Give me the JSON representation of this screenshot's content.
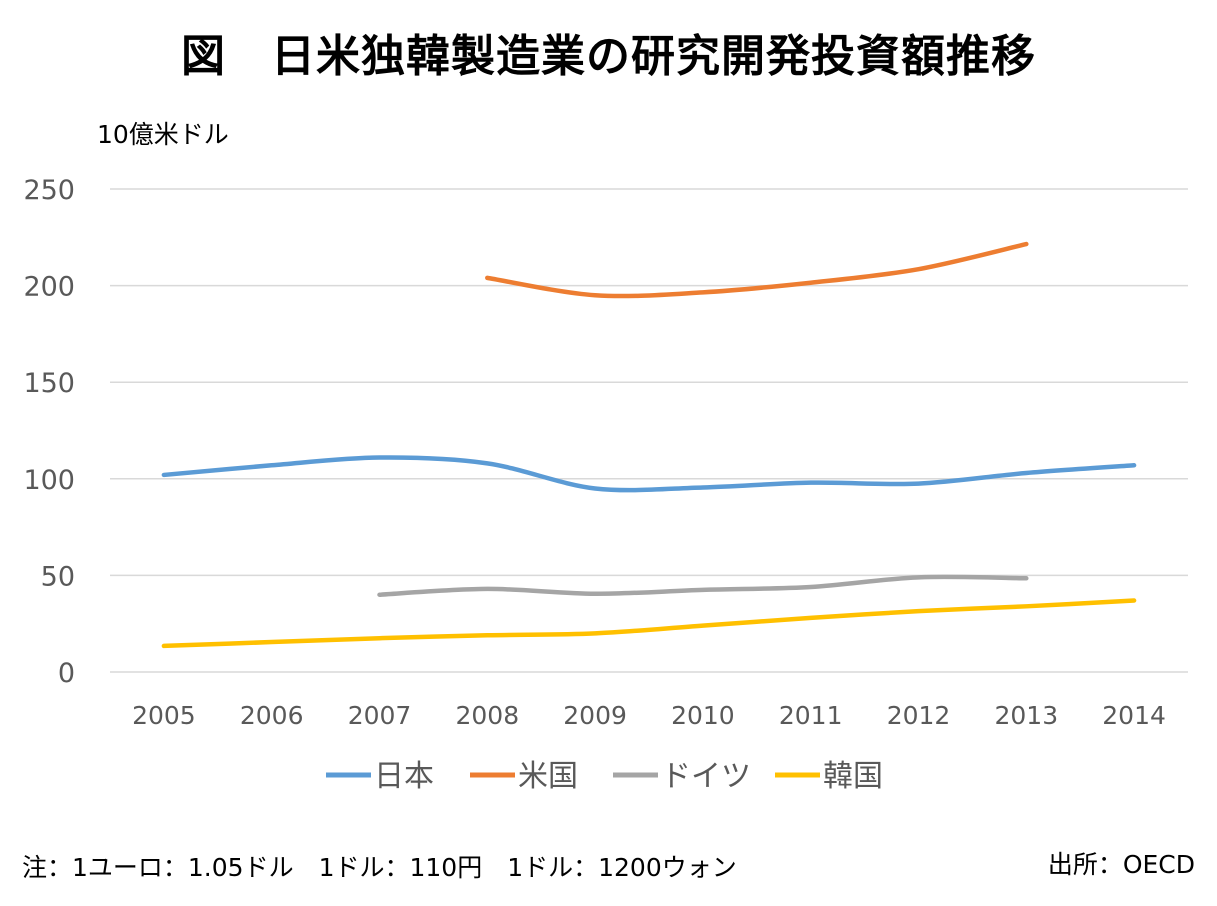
{
  "title": "図　日米独韓製造業の研究開発投資額推移",
  "note": "注：1ユーロ：1.05ドル　1ドル：110円　1ドル：1200ウォン",
  "source": "出所：OECD",
  "colors": {
    "日本": "#5B9BD5",
    "米国": "#ED7D31",
    "ドイツ": "#A5A5A5",
    "韓国": "#FFC000",
    "grid": "#D9D9D9",
    "tick": "#595959"
  },
  "chart_data": {
    "type": "line",
    "title": "図　日米独韓製造業の研究開発投資額推移",
    "ylabel": "10億米ドル",
    "xlabel": "",
    "ylim": [
      0,
      250
    ],
    "yticks": [
      0,
      50,
      100,
      150,
      200,
      250
    ],
    "grid": true,
    "legend": "bottom",
    "categories": [
      "2005",
      "2006",
      "2007",
      "2008",
      "2009",
      "2010",
      "2011",
      "2012",
      "2013",
      "2014"
    ],
    "series": [
      {
        "name": "日本",
        "values": [
          102,
          107,
          111,
          108,
          95,
          95.5,
          98,
          97.5,
          103,
          107
        ]
      },
      {
        "name": "米国",
        "values": [
          null,
          null,
          null,
          204,
          195,
          196.5,
          201.5,
          208.5,
          221.5,
          null
        ]
      },
      {
        "name": "ドイツ",
        "values": [
          null,
          null,
          40,
          43,
          40.5,
          42.5,
          44,
          49,
          48.5,
          null
        ]
      },
      {
        "name": "韓国",
        "values": [
          13.5,
          15.5,
          17.5,
          19,
          20,
          24,
          28,
          31.5,
          34,
          37
        ]
      }
    ]
  }
}
